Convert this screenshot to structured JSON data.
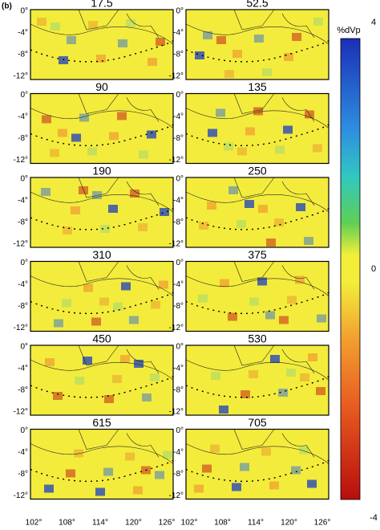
{
  "label": "(b)",
  "panels": [
    {
      "title": "17.5"
    },
    {
      "title": "52.5"
    },
    {
      "title": "90"
    },
    {
      "title": "135"
    },
    {
      "title": "190"
    },
    {
      "title": "250"
    },
    {
      "title": "310"
    },
    {
      "title": "375"
    },
    {
      "title": "450"
    },
    {
      "title": "530"
    },
    {
      "title": "615"
    },
    {
      "title": "705"
    }
  ],
  "y_ticks": [
    "0°",
    "-4°",
    "-8°",
    "-12°"
  ],
  "x_ticks": [
    "102°",
    "108°",
    "114°",
    "120°",
    "126°"
  ],
  "colorbar": {
    "label": "%dVp",
    "ticks": [
      "4",
      "0",
      "-4"
    ]
  }
}
